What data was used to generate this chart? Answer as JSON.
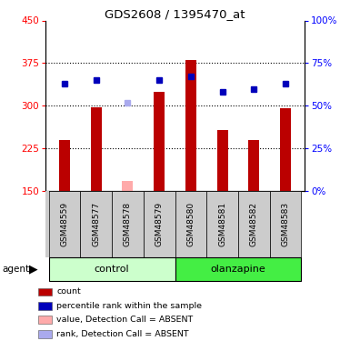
{
  "title": "GDS2608 / 1395470_at",
  "samples": [
    "GSM48559",
    "GSM48577",
    "GSM48578",
    "GSM48579",
    "GSM48580",
    "GSM48581",
    "GSM48582",
    "GSM48583"
  ],
  "count_values": [
    240,
    298,
    168,
    325,
    380,
    258,
    240,
    295
  ],
  "percentile_values": [
    63,
    65,
    52,
    65,
    67,
    58,
    60,
    63
  ],
  "absent_flags": [
    false,
    false,
    true,
    false,
    false,
    false,
    false,
    false
  ],
  "ylim_left": [
    150,
    450
  ],
  "ylim_right": [
    0,
    100
  ],
  "yticks_left": [
    150,
    225,
    300,
    375,
    450
  ],
  "yticks_right": [
    0,
    25,
    50,
    75,
    100
  ],
  "bar_color_present": "#bb0000",
  "bar_color_absent": "#ffaaaa",
  "dot_color_present": "#0000bb",
  "dot_color_absent": "#aaaaee",
  "control_bg": "#ccffcc",
  "olanzapine_bg": "#44ee44",
  "sample_bg": "#cccccc",
  "legend_items": [
    {
      "label": "count",
      "color": "#bb0000"
    },
    {
      "label": "percentile rank within the sample",
      "color": "#0000bb"
    },
    {
      "label": "value, Detection Call = ABSENT",
      "color": "#ffaaaa"
    },
    {
      "label": "rank, Detection Call = ABSENT",
      "color": "#aaaaee"
    }
  ],
  "baseline": 150,
  "n_control": 4,
  "n_olanzapine": 4
}
